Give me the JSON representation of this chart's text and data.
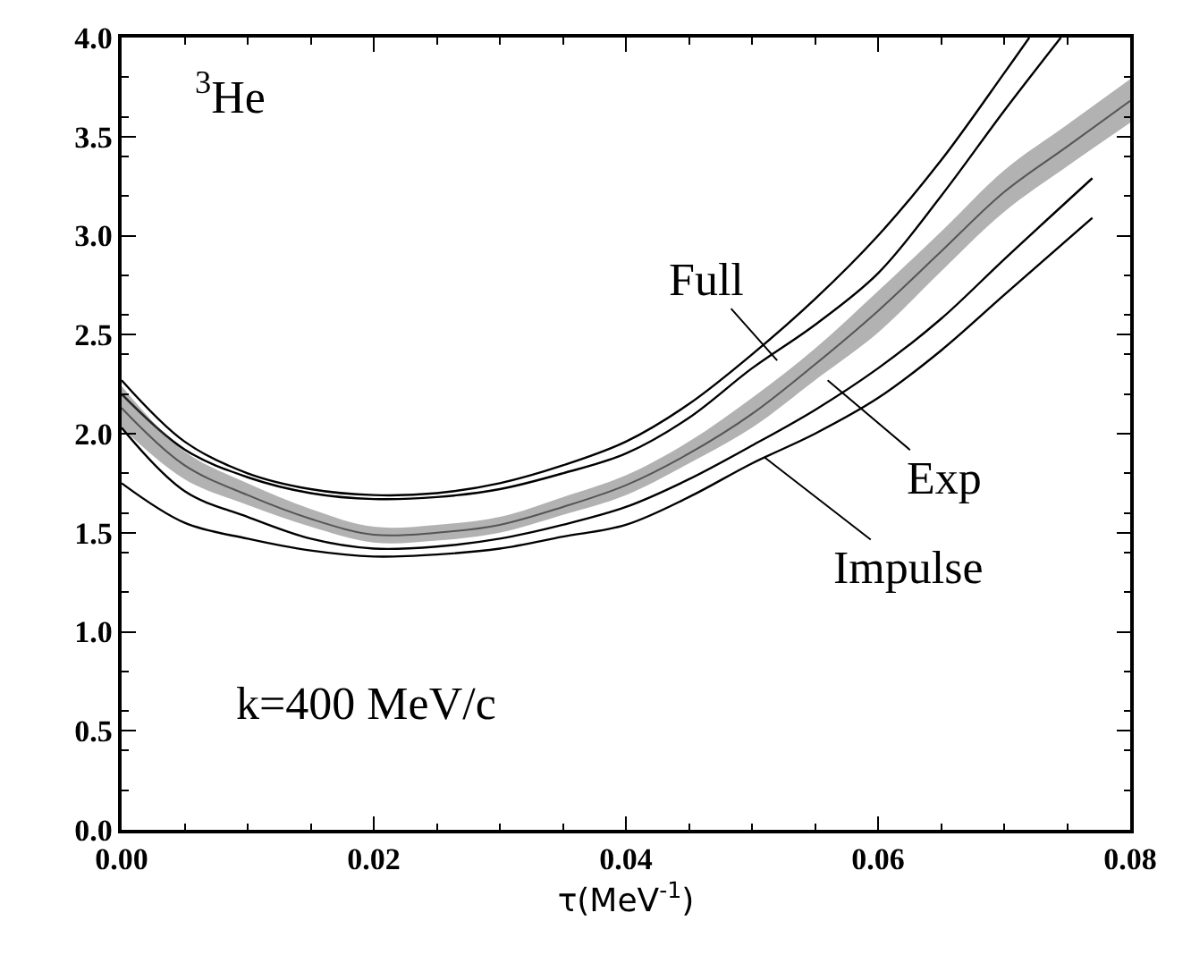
{
  "chart_data": {
    "type": "line",
    "xlabel": "τ(MeV$^{-1}$)",
    "xlim": [
      0,
      0.08
    ],
    "ylim": [
      0,
      4.0
    ],
    "xticks": [
      {
        "value": 0,
        "label": "0.00"
      },
      {
        "value": 0.02,
        "label": "0.02"
      },
      {
        "value": 0.04,
        "label": "0.04"
      },
      {
        "value": 0.06,
        "label": "0.06"
      },
      {
        "value": 0.08,
        "label": "0.08"
      }
    ],
    "yticks": [
      {
        "value": 0,
        "label": "0.0"
      },
      {
        "value": 0.5,
        "label": "0.5"
      },
      {
        "value": 1,
        "label": "1.0"
      },
      {
        "value": 1.5,
        "label": "1.5"
      },
      {
        "value": 2,
        "label": "2.0"
      },
      {
        "value": 2.5,
        "label": "2.5"
      },
      {
        "value": 3,
        "label": "3.0"
      },
      {
        "value": 3.5,
        "label": "3.5"
      },
      {
        "value": 4,
        "label": "4.0"
      }
    ],
    "series": [
      {
        "color": "#000000",
        "x": [
          0,
          0.005,
          0.01,
          0.015,
          0.02,
          0.025,
          0.03,
          0.035,
          0.04,
          0.045,
          0.05,
          0.055,
          0.06,
          0.065,
          0.07,
          0.0745
        ],
        "values": [
          2.2,
          1.92,
          1.78,
          1.7,
          1.67,
          1.68,
          1.72,
          1.8,
          1.9,
          2.08,
          2.33,
          2.55,
          2.81,
          3.2,
          3.63,
          4.0
        ]
      },
      {
        "color": "#000000",
        "x": [
          0,
          0.005,
          0.01,
          0.015,
          0.02,
          0.025,
          0.03,
          0.035,
          0.04,
          0.045,
          0.05,
          0.055,
          0.06,
          0.065,
          0.07,
          0.072
        ],
        "values": [
          2.27,
          1.96,
          1.8,
          1.72,
          1.69,
          1.7,
          1.75,
          1.84,
          1.96,
          2.15,
          2.4,
          2.68,
          3.0,
          3.38,
          3.82,
          4.0
        ]
      },
      {
        "color": "#555555",
        "x": [
          0,
          0.005,
          0.01,
          0.015,
          0.02,
          0.025,
          0.03,
          0.035,
          0.04,
          0.045,
          0.05,
          0.055,
          0.06,
          0.065,
          0.07,
          0.075,
          0.08
        ],
        "values": [
          2.13,
          1.84,
          1.69,
          1.57,
          1.49,
          1.5,
          1.54,
          1.63,
          1.74,
          1.9,
          2.1,
          2.35,
          2.62,
          2.92,
          3.22,
          3.45,
          3.68
        ],
        "lower": [
          2.03,
          1.77,
          1.64,
          1.53,
          1.45,
          1.46,
          1.5,
          1.59,
          1.69,
          1.85,
          2.03,
          2.27,
          2.51,
          2.82,
          3.12,
          3.35,
          3.57
        ],
        "upper": [
          2.24,
          1.91,
          1.75,
          1.62,
          1.53,
          1.54,
          1.58,
          1.68,
          1.79,
          1.96,
          2.18,
          2.43,
          2.72,
          3.02,
          3.33,
          3.56,
          3.79
        ]
      },
      {
        "color": "#000000",
        "x": [
          0,
          0.005,
          0.01,
          0.015,
          0.02,
          0.025,
          0.03,
          0.035,
          0.04,
          0.045,
          0.05,
          0.055,
          0.06,
          0.065,
          0.07,
          0.077
        ],
        "values": [
          1.75,
          1.55,
          1.47,
          1.41,
          1.38,
          1.39,
          1.42,
          1.48,
          1.54,
          1.68,
          1.85,
          2.0,
          2.18,
          2.42,
          2.7,
          3.09
        ]
      },
      {
        "color": "#000000",
        "x": [
          0,
          0.005,
          0.01,
          0.015,
          0.02,
          0.025,
          0.03,
          0.035,
          0.04,
          0.045,
          0.05,
          0.055,
          0.06,
          0.065,
          0.07,
          0.077
        ],
        "values": [
          2.03,
          1.71,
          1.58,
          1.47,
          1.42,
          1.43,
          1.47,
          1.54,
          1.63,
          1.77,
          1.94,
          2.12,
          2.33,
          2.58,
          2.88,
          3.29
        ]
      }
    ],
    "annotations": [
      "$^{3}$He",
      "k=400 MeV/c",
      {
        "text": "Full",
        "x": 0.052,
        "y": 2.37
      },
      {
        "text": "Exp",
        "x": 0.056,
        "y": 2.27
      },
      {
        "text": "Impulse",
        "x": 0.051,
        "y": 1.88
      }
    ]
  }
}
